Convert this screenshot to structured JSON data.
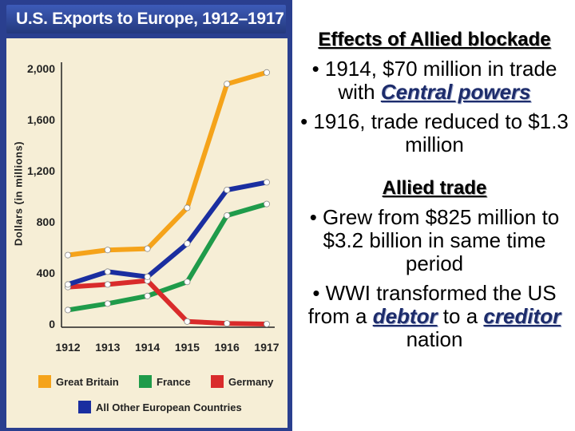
{
  "chart_data": {
    "type": "line",
    "title": "U.S. Exports to Europe, 1912–1917",
    "ylabel": "Dollars (in millions)",
    "xlabel": "",
    "x": [
      "1912",
      "1913",
      "1914",
      "1915",
      "1916",
      "1917"
    ],
    "yticks": [
      "0",
      "400",
      "800",
      "1,200",
      "1,600",
      "2,000"
    ],
    "ylim": [
      0,
      2000
    ],
    "grid": false,
    "legend_position": "bottom",
    "series": [
      {
        "name": "Great Britain",
        "color": "#f5a31a",
        "values": [
          540,
          580,
          590,
          910,
          1880,
          1970
        ]
      },
      {
        "name": "France",
        "color": "#1f9b4a",
        "values": [
          110,
          160,
          220,
          330,
          850,
          940
        ]
      },
      {
        "name": "Germany",
        "color": "#d92b2b",
        "values": [
          290,
          310,
          340,
          20,
          5,
          0
        ]
      },
      {
        "name": "All Other European Countries",
        "color": "#1a2ea0",
        "values": [
          310,
          410,
          370,
          630,
          1050,
          1110
        ]
      }
    ]
  },
  "notes": {
    "heading1": "Effects of Allied blockade",
    "b1_pre": "• 1914, $70 million in trade with ",
    "b1_kw": "Central powers",
    "b2": "• 1916, trade reduced to $1.3 million",
    "heading2": "Allied trade",
    "b3": "• Grew from $825 million to $3.2 billion in same time period",
    "b4_pre": "• WWI transformed the US from a ",
    "b4_kw1": "debtor",
    "b4_mid": " to a ",
    "b4_kw2": "creditor",
    "b4_post": " nation"
  }
}
